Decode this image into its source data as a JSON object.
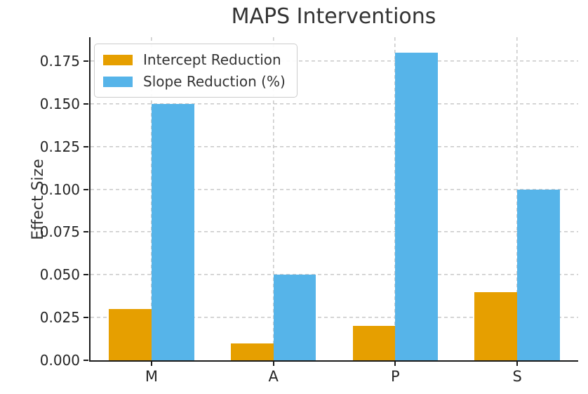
{
  "chart_data": {
    "type": "bar",
    "title": "MAPS Interventions",
    "ylabel": "Effect Size",
    "xlabel": "",
    "categories": [
      "M",
      "A",
      "P",
      "S"
    ],
    "series": [
      {
        "name": "Intercept Reduction",
        "color": "#E69F00",
        "values": [
          0.03,
          0.01,
          0.02,
          0.04
        ]
      },
      {
        "name": "Slope Reduction (%)",
        "color": "#56B4E9",
        "values": [
          0.15,
          0.05,
          0.18,
          0.1
        ]
      }
    ],
    "ylim": [
      0,
      0.189
    ],
    "yticks": [
      "0.000",
      "0.025",
      "0.050",
      "0.075",
      "0.100",
      "0.125",
      "0.150",
      "0.175"
    ],
    "grid": "both, dashed",
    "grid_color": "#cccccc",
    "axis_color": "#1a1a1a",
    "text_color": "#262626",
    "legend_position": "upper-left"
  }
}
